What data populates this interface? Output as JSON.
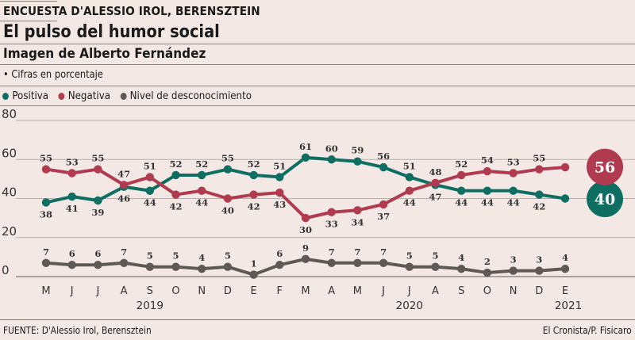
{
  "header": {
    "kicker": "ENCUESTA D'ALESSIO IROL, BERENSZTEIN",
    "title": "El pulso del humor social",
    "subtitle": "Imagen de Alberto Fernández",
    "note": "• Cifras en porcentaje"
  },
  "legend": [
    {
      "label": "Positiva",
      "color": "#0E6E62"
    },
    {
      "label": "Negativa",
      "color": "#B03A4E"
    },
    {
      "label": "Nivel de desconocimiento",
      "color": "#5E5954"
    }
  ],
  "footer": {
    "source": "FUENTE: D'Alessio Irol, Berensztein",
    "credit": "El Cronista/P. Fisicaro"
  },
  "chart_data": {
    "type": "line",
    "title": "Imagen de Alberto Fernández",
    "xlabel": "",
    "ylabel": "Cifras en porcentaje",
    "ylim": [
      0,
      80
    ],
    "yticks": [
      0,
      20,
      40,
      60,
      80
    ],
    "grid": true,
    "legend_position": "top-left",
    "categories": [
      "M",
      "J",
      "J",
      "A",
      "S",
      "O",
      "N",
      "D",
      "E",
      "F",
      "M",
      "A",
      "M",
      "J",
      "J",
      "A",
      "S",
      "O",
      "N",
      "D",
      "E"
    ],
    "year_labels": [
      {
        "label": "2019",
        "at_index": 4
      },
      {
        "label": "2020",
        "at_index": 14
      },
      {
        "label": "2021",
        "at_index": 20
      }
    ],
    "series": [
      {
        "name": "Positiva",
        "color": "#0E6E62",
        "values": [
          38,
          41,
          39,
          46,
          44,
          52,
          52,
          55,
          52,
          51,
          61,
          60,
          59,
          56,
          51,
          47,
          44,
          44,
          44,
          42,
          40
        ],
        "label_positions": [
          "below",
          "below",
          "below",
          "below",
          "below",
          "above",
          "above",
          "above",
          "above",
          "above",
          "above",
          "above",
          "above",
          "above",
          "above",
          "below",
          "below",
          "below",
          "below",
          "below",
          null
        ],
        "end_badge": "40"
      },
      {
        "name": "Negativa",
        "color": "#B03A4E",
        "values": [
          55,
          53,
          55,
          47,
          51,
          42,
          44,
          40,
          42,
          43,
          30,
          33,
          34,
          37,
          44,
          48,
          52,
          54,
          53,
          55,
          56
        ],
        "label_positions": [
          "above",
          "above",
          "above",
          "above",
          "above",
          "below",
          "below",
          "below",
          "below",
          "below",
          "below",
          "below",
          "below",
          "below",
          "below",
          "above",
          "above",
          "above",
          "above",
          "above",
          null
        ],
        "end_badge": "56"
      },
      {
        "name": "Nivel de desconocimiento",
        "color": "#5E5954",
        "values": [
          7,
          6,
          6,
          7,
          5,
          5,
          4,
          5,
          1,
          6,
          9,
          7,
          7,
          7,
          5,
          5,
          4,
          2,
          3,
          3,
          4
        ],
        "label_positions": [
          "above",
          "above",
          "above",
          "above",
          "above",
          "above",
          "above",
          "above",
          "above",
          "above",
          "above",
          "above",
          "above",
          "above",
          "above",
          "above",
          "above",
          "above",
          "above",
          "above",
          "above"
        ],
        "end_badge": null
      }
    ]
  }
}
